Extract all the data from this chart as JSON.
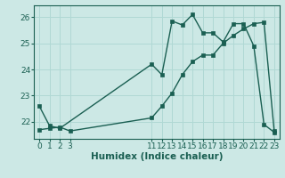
{
  "xlabel": "Humidex (Indice chaleur)",
  "bg_color": "#cce8e5",
  "line_color": "#1a5f52",
  "grid_color": "#b0d8d4",
  "xlim": [
    -0.5,
    23.5
  ],
  "ylim": [
    21.35,
    26.45
  ],
  "yticks": [
    22,
    23,
    24,
    25,
    26
  ],
  "xticks": [
    0,
    1,
    2,
    3,
    11,
    12,
    13,
    14,
    15,
    16,
    17,
    18,
    19,
    20,
    21,
    22,
    23
  ],
  "series1_x": [
    0,
    1,
    2,
    11,
    12,
    13,
    14,
    15,
    16,
    17,
    18,
    19,
    20,
    21,
    22,
    23
  ],
  "series1_y": [
    22.6,
    21.85,
    21.75,
    24.2,
    23.8,
    25.85,
    25.7,
    26.1,
    25.4,
    25.4,
    25.05,
    25.75,
    25.75,
    24.9,
    21.9,
    21.6
  ],
  "series2_x": [
    0,
    1,
    2,
    3,
    11,
    12,
    13,
    14,
    15,
    16,
    17,
    18,
    19,
    20,
    21,
    22,
    23
  ],
  "series2_y": [
    21.7,
    21.75,
    21.8,
    21.65,
    22.15,
    22.6,
    23.1,
    23.8,
    24.3,
    24.55,
    24.55,
    25.0,
    25.3,
    25.55,
    25.75,
    25.8,
    21.65
  ],
  "markersize": 2.5,
  "linewidth": 1.0,
  "tick_fontsize": 6.5,
  "label_fontsize": 7.5
}
